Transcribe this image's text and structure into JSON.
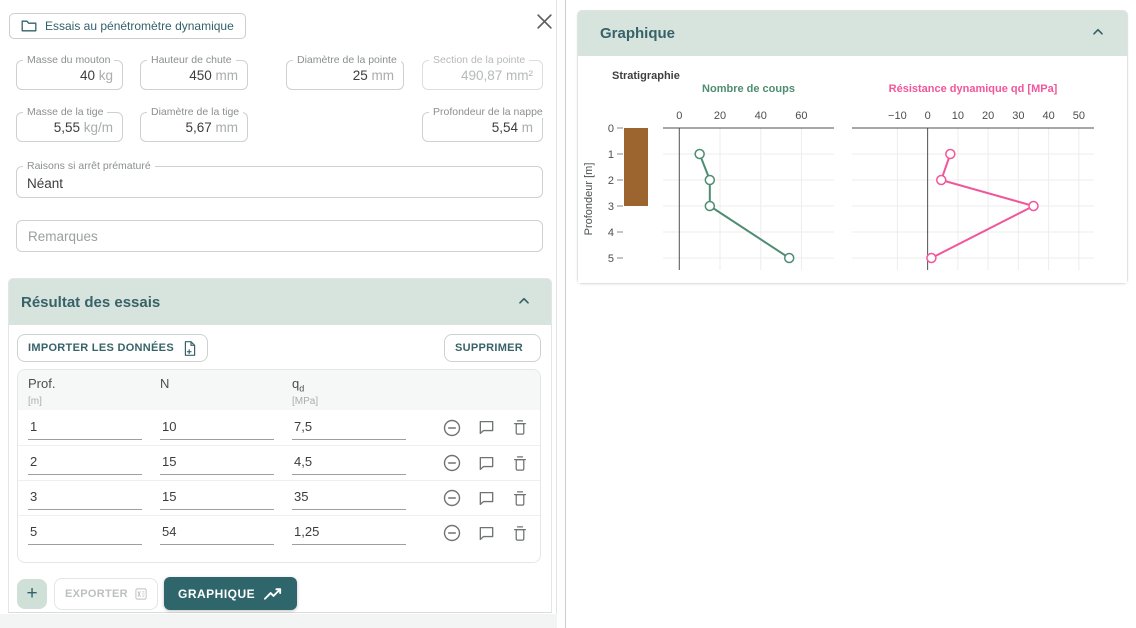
{
  "colors": {
    "accent_teal": "#2f666b",
    "section_header_bg": "#d7e3dd",
    "series_green": "#4e8d72",
    "series_pink": "#f2569a",
    "stratigraphy_brown": "#9c642e"
  },
  "dialog": {
    "chip": {
      "label": "Essais au pénétromètre dynamique"
    },
    "close_glyph": "",
    "fields": [
      {
        "label": "Masse du mouton",
        "value": "40",
        "unit": "kg"
      },
      {
        "label": "Hauteur de chute",
        "value": "450",
        "unit": "mm"
      },
      {
        "label": "Diamètre de la pointe",
        "value": "25",
        "unit": "mm"
      },
      {
        "label": "Section de la pointe",
        "value": "490,87",
        "unit": "mm²",
        "disabled": true
      },
      {
        "label": "Masse de la tige",
        "value": "5,55",
        "unit": "kg/m"
      },
      {
        "label": "Diamètre de la tige",
        "value": "5,67",
        "unit": "mm"
      },
      {
        "label": "Profondeur de la nappe",
        "value": "5,54",
        "unit": "m"
      }
    ],
    "raisons": {
      "label": "Raisons si arrêt prématuré",
      "value": "Néant"
    },
    "remarques": {
      "placeholder": "Remarques"
    },
    "results": {
      "title": "Résultat des essais",
      "import_label": "IMPORTER LES DONNÉES",
      "delete_label": "SUPPRIMER",
      "columns": [
        {
          "name": "Prof.",
          "sub": "",
          "unit": "[m]"
        },
        {
          "name": "N",
          "sub": "",
          "unit": ""
        },
        {
          "name": "q",
          "sub": "d",
          "unit": "[MPa]"
        }
      ],
      "rows": [
        {
          "prof": "1",
          "n": "10",
          "qd": "7,5"
        },
        {
          "prof": "2",
          "n": "15",
          "qd": "4,5"
        },
        {
          "prof": "3",
          "n": "15",
          "qd": "35"
        },
        {
          "prof": "5",
          "n": "54",
          "qd": "1,25"
        }
      ],
      "add_label": "+",
      "export_label": "EXPORTER",
      "graph_label": "GRAPHIQUE"
    }
  },
  "graph_panel": {
    "title": "Graphique"
  },
  "chart_data": {
    "type": "line",
    "layout": "depth-profile",
    "depth_axis": {
      "label": "Profondeur [m]",
      "ticks": [
        0,
        1,
        2,
        3,
        4,
        5
      ],
      "range": [
        0,
        5.5
      ]
    },
    "stratigraphy": {
      "label": "Stratigraphie",
      "color": "#9c642e",
      "top_depth": 0,
      "bottom_depth": 3
    },
    "charts": [
      {
        "title": "Nombre de coups",
        "color": "#4e8d72",
        "xticks": [
          0,
          20,
          40,
          60
        ],
        "xlim": [
          -8,
          76
        ],
        "points": [
          {
            "x": 10,
            "depth": 1
          },
          {
            "x": 15,
            "depth": 2
          },
          {
            "x": 15,
            "depth": 3
          },
          {
            "x": 54,
            "depth": 5
          }
        ]
      },
      {
        "title": "Résistance dynamique qd [MPa]",
        "color": "#f2569a",
        "xticks": [
          -10,
          0,
          10,
          20,
          30,
          40,
          50
        ],
        "xlim": [
          -25,
          55
        ],
        "points": [
          {
            "x": 7.5,
            "depth": 1
          },
          {
            "x": 4.5,
            "depth": 2
          },
          {
            "x": 35,
            "depth": 3
          },
          {
            "x": 1.25,
            "depth": 5
          }
        ]
      }
    ]
  }
}
